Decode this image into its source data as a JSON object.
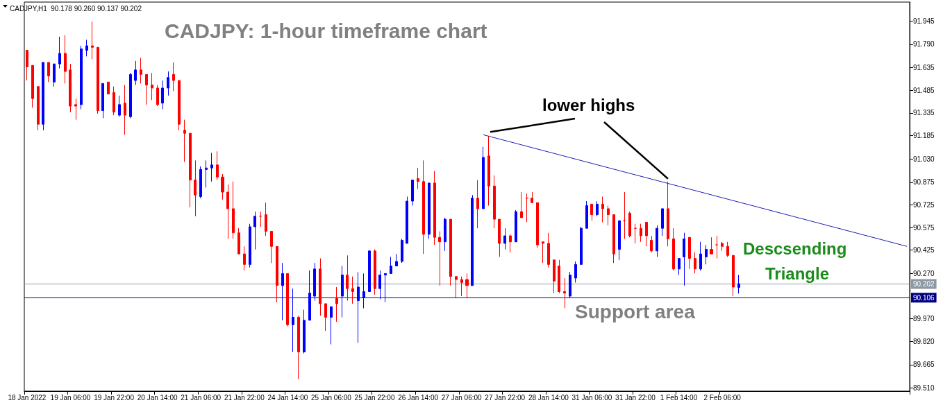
{
  "chart_data": {
    "type": "candlestick",
    "title": "CADJPY: 1-hour timeframe chart",
    "annotations": [
      "CADJPY,H1  90.178 90.260 90.137 90.202",
      "lower highs",
      "Descsending Triangle",
      "Support area"
    ],
    "categories": [
      "18 Jan 2022",
      null,
      null,
      null,
      null,
      null,
      null,
      null,
      "19 Jan 06:00",
      null,
      null,
      null,
      null,
      null,
      null,
      null,
      "19 Jan 22:00",
      null,
      null,
      null,
      null,
      null,
      null,
      null,
      "20 Jan 14:00",
      null,
      null,
      null,
      null,
      null,
      null,
      null,
      "21 Jan 06:00",
      null,
      null,
      null,
      null,
      null,
      null,
      null,
      "21 Jan 22:00",
      null,
      null,
      null,
      null,
      null,
      null,
      null,
      "24 Jan 14:00",
      null,
      null,
      null,
      null,
      null,
      null,
      null,
      "25 Jan 06:00",
      null,
      null,
      null,
      null,
      null,
      null,
      null,
      "25 Jan 22:00",
      null,
      null,
      null,
      null,
      null,
      null,
      null,
      "26 Jan 14:00",
      null,
      null,
      null,
      null,
      null,
      null,
      null,
      "27 Jan 06:00",
      null,
      null,
      null,
      null,
      null,
      null,
      null,
      "27 Jan 22:00",
      null,
      null,
      null,
      null,
      null,
      null,
      null,
      "28 Jan 14:00",
      null,
      null,
      null,
      null,
      null,
      null,
      null,
      "31 Jan 06:00",
      null,
      null,
      null,
      null,
      null,
      null,
      null,
      "31 Jan 22:00",
      null,
      null,
      null,
      null,
      null,
      null,
      null,
      "1 Feb 14:00",
      null,
      null,
      null,
      null,
      null,
      null,
      null,
      "2 Feb 06:00",
      null,
      null,
      null,
      null,
      null,
      null,
      null,
      null,
      null,
      null,
      null,
      null,
      null,
      null,
      null,
      null,
      null,
      null,
      null,
      null,
      null,
      null,
      null,
      null,
      null,
      null,
      null,
      null,
      null,
      null,
      null,
      null,
      null,
      null
    ],
    "series": [
      {
        "color": "#0000ff",
        "ohlc": [
          null,
          null,
          null,
          [
            91.26,
            91.67,
            91.22,
            91.67
          ],
          null,
          [
            91.54,
            91.66,
            91.51,
            91.66
          ],
          [
            91.66,
            91.84,
            91.63,
            91.73
          ],
          null,
          null,
          null,
          [
            91.39,
            91.78,
            91.36,
            91.76
          ],
          [
            91.75,
            91.82,
            91.71,
            91.78
          ],
          null,
          null,
          [
            91.35,
            91.53,
            91.3,
            91.53
          ],
          null,
          null,
          [
            91.32,
            91.45,
            91.31,
            91.39
          ],
          null,
          [
            91.31,
            91.6,
            91.3,
            91.59
          ],
          [
            91.55,
            91.68,
            91.52,
            91.62
          ],
          null,
          null,
          null,
          null,
          [
            91.4,
            91.55,
            91.36,
            91.5
          ],
          [
            91.5,
            91.61,
            91.45,
            91.57
          ],
          null,
          null,
          null,
          null,
          null,
          [
            90.78,
            90.98,
            90.77,
            90.96
          ],
          [
            90.96,
            91.02,
            90.84,
            90.97
          ],
          [
            90.97,
            91.07,
            90.88,
            90.99
          ],
          null,
          null,
          null,
          null,
          null,
          null,
          [
            90.33,
            90.6,
            90.31,
            90.58
          ],
          [
            90.58,
            90.68,
            90.43,
            90.65
          ],
          null,
          null,
          null,
          null,
          [
            90.19,
            90.34,
            89.96,
            90.27
          ],
          null,
          [
            89.93,
            90.17,
            89.75,
            89.98
          ],
          null,
          [
            89.75,
            90.03,
            89.74,
            89.96
          ],
          [
            89.96,
            90.29,
            89.96,
            90.14
          ],
          [
            90.12,
            90.34,
            90.09,
            90.3
          ],
          null,
          null,
          [
            89.98,
            90.05,
            89.8,
            90.05
          ],
          null,
          [
            90.12,
            90.32,
            89.98,
            90.26
          ],
          null,
          null,
          [
            90.09,
            90.28,
            89.81,
            90.18
          ],
          [
            90.11,
            90.27,
            90.04,
            90.15
          ],
          [
            90.15,
            90.42,
            90.15,
            90.42
          ],
          null,
          [
            90.17,
            90.29,
            90.1,
            90.26
          ],
          [
            90.26,
            90.27,
            90.08,
            90.27
          ],
          [
            90.27,
            90.38,
            90.27,
            90.32
          ],
          [
            90.32,
            90.4,
            90.32,
            90.35
          ],
          [
            90.35,
            90.5,
            90.34,
            90.49
          ],
          [
            90.47,
            90.78,
            90.47,
            90.75
          ],
          [
            90.75,
            90.89,
            90.72,
            90.89
          ],
          null,
          null,
          [
            90.53,
            90.87,
            90.5,
            90.87
          ],
          null,
          null,
          [
            90.48,
            90.64,
            90.42,
            90.63
          ],
          null,
          null,
          null,
          null,
          [
            90.19,
            90.79,
            90.19,
            90.77
          ],
          null,
          [
            90.7,
            91.11,
            90.7,
            91.04
          ],
          null,
          null,
          null,
          [
            90.47,
            90.57,
            90.43,
            90.52
          ],
          null,
          [
            90.48,
            90.69,
            90.48,
            90.68
          ],
          null,
          null,
          null,
          null,
          null,
          null,
          null,
          null,
          null,
          [
            90.12,
            90.28,
            90.11,
            90.26
          ],
          [
            90.24,
            90.35,
            90.21,
            90.33
          ],
          [
            90.33,
            90.58,
            90.33,
            90.57
          ],
          [
            90.57,
            90.75,
            90.57,
            90.72
          ],
          null,
          [
            90.66,
            90.75,
            90.65,
            90.73
          ],
          null,
          null,
          null,
          [
            90.43,
            90.62,
            90.36,
            90.62
          ],
          null,
          null,
          null,
          null,
          null,
          null,
          [
            90.42,
            90.59,
            90.38,
            90.57
          ],
          [
            90.57,
            90.7,
            90.52,
            90.7
          ],
          null,
          null,
          [
            90.3,
            90.37,
            90.26,
            90.37
          ],
          [
            90.38,
            90.54,
            90.19,
            90.5
          ],
          null,
          null,
          [
            90.3,
            90.48,
            90.29,
            90.4
          ],
          [
            90.38,
            90.46,
            90.33,
            90.43
          ],
          null,
          null,
          null,
          null,
          null,
          [
            90.178,
            90.26,
            90.137,
            90.202
          ],
          null,
          null,
          null,
          null,
          null,
          null,
          null,
          null,
          null,
          null,
          null,
          null,
          null,
          null,
          null,
          null,
          null,
          null,
          null,
          null,
          null,
          null,
          null,
          null,
          null,
          null,
          null,
          null,
          null,
          null,
          null
        ]
      },
      {
        "color": "#ff0000",
        "ohlc": [
          [
            91.75,
            91.75,
            91.55,
            91.64
          ],
          [
            91.65,
            91.65,
            91.37,
            91.43
          ],
          [
            91.51,
            91.51,
            91.22,
            91.26
          ],
          null,
          [
            91.67,
            91.67,
            91.54,
            91.58
          ],
          null,
          null,
          [
            91.73,
            91.85,
            91.53,
            91.61
          ],
          [
            91.62,
            91.66,
            91.34,
            91.38
          ],
          [
            91.39,
            91.43,
            91.29,
            91.38
          ],
          null,
          null,
          [
            91.78,
            91.94,
            91.69,
            91.77
          ],
          [
            91.77,
            91.77,
            91.33,
            91.35
          ],
          null,
          [
            91.54,
            91.54,
            91.46,
            91.46
          ],
          [
            91.47,
            91.51,
            91.32,
            91.34
          ],
          null,
          [
            91.4,
            91.52,
            91.19,
            91.32
          ],
          null,
          null,
          [
            91.62,
            91.7,
            91.53,
            91.59
          ],
          [
            91.59,
            91.59,
            91.39,
            91.52
          ],
          [
            91.52,
            91.6,
            91.42,
            91.5
          ],
          [
            91.5,
            91.52,
            91.38,
            91.39
          ],
          null,
          null,
          [
            91.59,
            91.67,
            91.48,
            91.55
          ],
          [
            91.55,
            91.55,
            91.22,
            91.26
          ],
          [
            91.22,
            91.29,
            91.01,
            91.2
          ],
          [
            91.2,
            91.2,
            90.71,
            90.89
          ],
          [
            90.89,
            91.02,
            90.65,
            90.79
          ],
          null,
          null,
          null,
          [
            90.99,
            91.08,
            90.89,
            90.91
          ],
          [
            90.91,
            90.93,
            90.76,
            90.81
          ],
          [
            90.81,
            90.86,
            90.5,
            90.7
          ],
          [
            90.7,
            90.88,
            90.5,
            90.54
          ],
          [
            90.54,
            90.57,
            90.4,
            90.4
          ],
          [
            90.4,
            90.45,
            90.29,
            90.33
          ],
          null,
          null,
          [
            90.65,
            90.68,
            90.58,
            90.65
          ],
          [
            90.66,
            90.74,
            90.52,
            90.55
          ],
          [
            90.55,
            90.55,
            90.34,
            90.45
          ],
          [
            90.45,
            90.45,
            90.08,
            90.19
          ],
          null,
          [
            90.27,
            90.27,
            89.92,
            89.93
          ],
          null,
          [
            89.98,
            89.99,
            89.57,
            89.75
          ],
          null,
          null,
          null,
          [
            90.3,
            90.37,
            89.99,
            90.07
          ],
          [
            90.07,
            90.07,
            89.89,
            89.98
          ],
          null,
          [
            90.11,
            90.18,
            89.95,
            90.07
          ],
          null,
          [
            90.26,
            90.39,
            90.09,
            90.17
          ],
          [
            90.17,
            90.25,
            90.07,
            90.15
          ],
          null,
          null,
          null,
          [
            90.42,
            90.43,
            90.13,
            90.17
          ],
          null,
          null,
          null,
          null,
          null,
          null,
          null,
          [
            90.9,
            90.97,
            90.83,
            90.88
          ],
          [
            90.88,
            91.02,
            90.4,
            90.53
          ],
          null,
          [
            90.87,
            90.95,
            90.46,
            90.51
          ],
          [
            90.51,
            90.55,
            90.19,
            90.48
          ],
          null,
          [
            90.63,
            90.63,
            90.19,
            90.25
          ],
          [
            90.25,
            90.25,
            90.11,
            90.23
          ],
          [
            90.23,
            90.25,
            90.12,
            90.21
          ],
          [
            90.23,
            90.27,
            90.11,
            90.19
          ],
          null,
          [
            90.77,
            90.89,
            90.57,
            90.7
          ],
          null,
          [
            91.05,
            91.18,
            90.72,
            90.85
          ],
          [
            90.85,
            90.92,
            90.57,
            90.63
          ],
          [
            90.63,
            90.63,
            90.38,
            90.47
          ],
          null,
          [
            90.52,
            90.53,
            90.41,
            90.48
          ],
          null,
          [
            90.68,
            90.81,
            90.64,
            90.64
          ],
          [
            90.77,
            90.8,
            90.61,
            90.77
          ],
          [
            90.77,
            90.81,
            90.74,
            90.74
          ],
          [
            90.74,
            90.74,
            90.44,
            90.46
          ],
          [
            90.48,
            90.48,
            90.34,
            90.47
          ],
          [
            90.47,
            90.54,
            90.31,
            90.33
          ],
          [
            90.36,
            90.36,
            90.14,
            90.22
          ],
          [
            90.32,
            90.36,
            90.14,
            90.15
          ],
          [
            90.15,
            90.24,
            90.04,
            90.14
          ],
          null,
          null,
          null,
          null,
          [
            90.73,
            90.73,
            90.62,
            90.66
          ],
          null,
          [
            90.73,
            90.78,
            90.61,
            90.7
          ],
          [
            90.7,
            90.72,
            90.59,
            90.66
          ],
          [
            90.66,
            90.66,
            90.34,
            90.4
          ],
          null,
          [
            90.62,
            90.81,
            90.5,
            90.62
          ],
          [
            90.67,
            90.68,
            90.51,
            90.52
          ],
          [
            90.57,
            90.6,
            90.47,
            90.57
          ],
          [
            90.57,
            90.6,
            90.48,
            90.52
          ],
          [
            90.61,
            90.61,
            90.45,
            90.52
          ],
          [
            90.49,
            90.52,
            90.41,
            90.42
          ],
          null,
          null,
          [
            90.7,
            90.88,
            90.45,
            90.5
          ],
          [
            90.5,
            90.57,
            90.29,
            90.3
          ],
          null,
          null,
          [
            90.51,
            90.51,
            90.3,
            90.37
          ],
          [
            90.37,
            90.41,
            90.27,
            90.3
          ],
          null,
          null,
          [
            90.43,
            90.51,
            90.4,
            90.4
          ],
          [
            90.46,
            90.52,
            90.37,
            90.46
          ],
          [
            90.47,
            90.48,
            90.42,
            90.45
          ],
          [
            90.45,
            90.48,
            90.38,
            90.39
          ],
          [
            90.39,
            90.39,
            90.12,
            90.18
          ],
          null,
          null,
          null,
          null,
          null,
          null,
          null,
          null,
          null,
          null,
          null,
          null,
          null,
          null,
          null,
          null,
          null,
          null,
          null,
          null,
          null,
          null,
          null,
          null,
          null,
          null,
          null,
          null,
          null,
          null,
          null,
          null
        ]
      },
      {
        "type": "line",
        "color": "#1c1cb4",
        "values": [
          null,
          null,
          null,
          null,
          null,
          null,
          null,
          null,
          null,
          null,
          null,
          null,
          null,
          null,
          null,
          null,
          null,
          null,
          null,
          null,
          null,
          null,
          null,
          null,
          null,
          null,
          null,
          null,
          null,
          null,
          null,
          null,
          null,
          null,
          null,
          null,
          null,
          null,
          null,
          null,
          null,
          null,
          null,
          null,
          null,
          null,
          null,
          null,
          null,
          null,
          null,
          null,
          null,
          null,
          null,
          null,
          null,
          null,
          null,
          null,
          null,
          null,
          null,
          null,
          null,
          null,
          null,
          null,
          null,
          null,
          null,
          null,
          null,
          null,
          null,
          null,
          null,
          null,
          null,
          null,
          null,
          null,
          null,
          null,
          91.19,
          null,
          null,
          null,
          null,
          null,
          null,
          null,
          null,
          null,
          null,
          null,
          null,
          null,
          null,
          null,
          null,
          null,
          null,
          null,
          null,
          null,
          null,
          null,
          null,
          null,
          null,
          null,
          null,
          null,
          null,
          null,
          null,
          null,
          null,
          null,
          null,
          null,
          null,
          null,
          null,
          null,
          null,
          null,
          null,
          null,
          null,
          null,
          null,
          null,
          null,
          null,
          null,
          null,
          null,
          null,
          null,
          null,
          null,
          null,
          null,
          null,
          null,
          null,
          null,
          null,
          null,
          null,
          null,
          null,
          null,
          null,
          null,
          null,
          null,
          null,
          null,
          null,
          90.45
        ]
      }
    ],
    "ylim": [
      89.49,
      92.07
    ],
    "yticks": [
      {
        "value": 89.51,
        "label": "89.510"
      },
      89.665,
      {
        "value": 89.82,
        "label": "89.820"
      },
      {
        "value": 89.97,
        "label": "89.970"
      },
      {
        "value": 90.27,
        "label": "90.270"
      },
      90.425,
      90.575,
      90.725,
      90.875,
      {
        "value": 91.03,
        "label": "91.030"
      },
      91.185,
      91.335,
      91.485,
      91.635,
      {
        "value": 91.79,
        "label": "91.790"
      },
      91.945
    ],
    "ref_lines": [
      {
        "axis": "y",
        "value": 90.202,
        "label": "90.202",
        "color": "#8c98a4"
      },
      {
        "axis": "y",
        "value": 90.106,
        "label": "90.106",
        "color": "#000080"
      }
    ],
    "grid": false
  }
}
